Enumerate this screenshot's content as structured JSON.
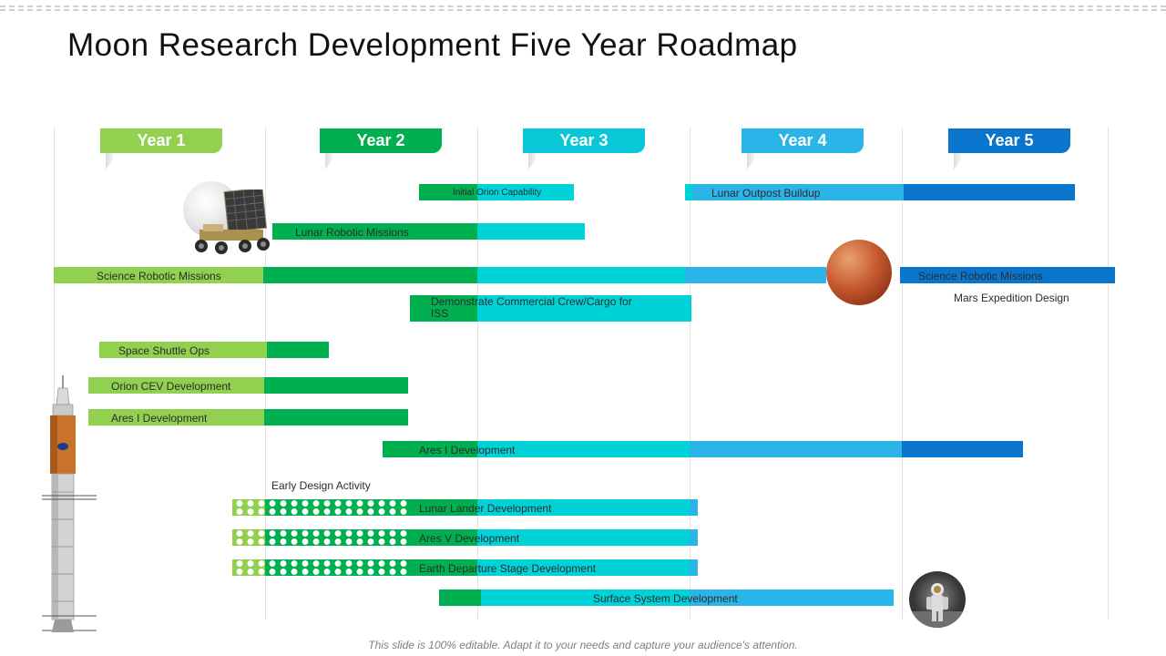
{
  "slide": {
    "title": "Moon Research Development Five Year Roadmap",
    "footer": "This slide is 100% editable. Adapt it to your needs and capture your audience's attention."
  },
  "colors": {
    "year1": "#92d050",
    "year2": "#00b050",
    "year3": "#00d3d8",
    "year4": "#2ab4e8",
    "year5": "#0a75cc",
    "year3_tab": "#08c8d8"
  },
  "years": [
    {
      "label": "Year 1"
    },
    {
      "label": "Year 2"
    },
    {
      "label": "Year 3"
    },
    {
      "label": "Year 4"
    },
    {
      "label": "Year 5"
    }
  ],
  "tracks": {
    "initial_orion": {
      "label": "Initial  Orion Capability"
    },
    "lunar_outpost": {
      "label": "Lunar Outpost Buildup"
    },
    "lunar_robotic": {
      "label": "Lunar Robotic Missions"
    },
    "science_robotic_1": {
      "label": "Science Robotic Missions"
    },
    "science_robotic_2": {
      "label": "Science Robotic Missions"
    },
    "mars_expedition": {
      "label": "Mars Expedition Design"
    },
    "commercial_crew": {
      "label": "Demonstrate Commercial Crew/Cargo for ISS"
    },
    "space_shuttle": {
      "label": "Space Shuttle Ops"
    },
    "orion_cev": {
      "label": "Orion CEV Development"
    },
    "ares1_a": {
      "label": "Ares I Development"
    },
    "ares1_b": {
      "label": "Ares I Development"
    },
    "early_design": {
      "label": "Early Design Activity"
    },
    "lunar_lander": {
      "label": "Lunar Lander Development"
    },
    "ares5": {
      "label": "Ares V Development"
    },
    "earth_departure": {
      "label": "Earth Departure Stage Development"
    },
    "surface_system": {
      "label": "Surface System Development"
    }
  },
  "illustrations": {
    "moon_rover": "moon-rover-image",
    "mars": "mars-planet-image",
    "astronaut": "astronaut-moon-image",
    "rocket": "rocket-image"
  }
}
